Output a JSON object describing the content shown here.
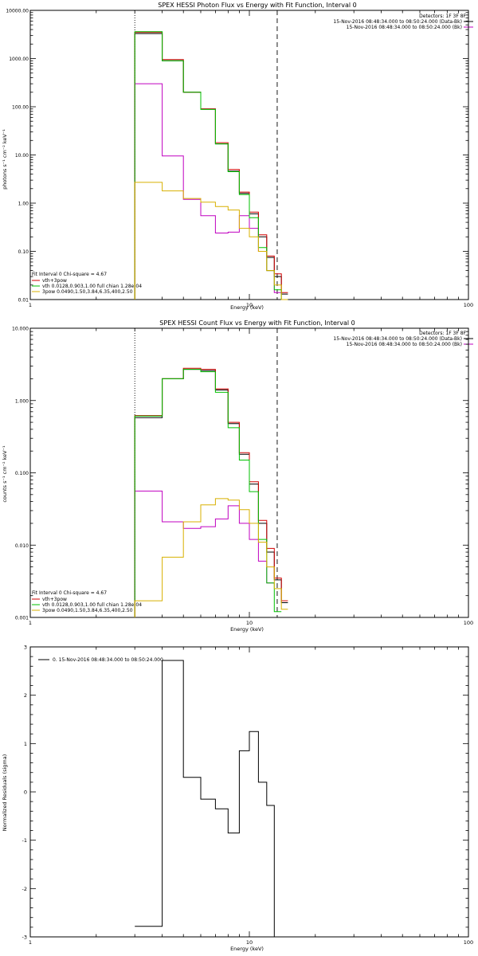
{
  "panel1": {
    "title": "SPEX HESSI Photon Flux vs Energy with Fit Function, Interval 0",
    "ylabel": "photons s⁻¹ cm⁻² keV⁻¹",
    "xlabel": "Energy (keV)",
    "detectors": "Detectors: 1F 3F 8F",
    "legend_top": [
      {
        "text": "15-Nov-2016 08:48:34.000 to 08:50:24.000 (Data-Bk)",
        "color": "#000000"
      },
      {
        "text": "15-Nov-2016 08:48:34.000 to 08:50:24.000 (Bk)",
        "color": "#c000c0"
      }
    ],
    "fit_header": "Fit Interval 0   Chi-square = 4.67",
    "fit_lines": [
      {
        "text": "vth+3pow",
        "color": "#d00000"
      },
      {
        "text": "vth 0.0128,0.903,1.00  full chian 1.28e-04",
        "color": "#00c000"
      },
      {
        "text": "3pow 0.0490,1.50,3.84,6.35,400,2.50",
        "color": "#d8b000"
      }
    ]
  },
  "panel2": {
    "title": "SPEX HESSI Count Flux vs Energy with Fit Function, Interval 0",
    "ylabel": "counts s⁻¹ cm⁻² keV⁻¹",
    "xlabel": "Energy (keV)",
    "detectors": "Detectors: 1F 3F 8F",
    "legend_top": [
      {
        "text": "15-Nov-2016 08:48:34.000 to 08:50:24.000 (Data-Bk)",
        "color": "#000000"
      },
      {
        "text": "15-Nov-2016 08:48:34.000 to 08:50:24.000 (Bk)",
        "color": "#c000c0"
      }
    ],
    "fit_header": "Fit Interval 0   Chi-square = 4.67",
    "fit_lines": [
      {
        "text": "vth+3pow",
        "color": "#d00000"
      },
      {
        "text": "vth 0.0128,0.903,1.00  full chian 1.28e-04",
        "color": "#00c000"
      },
      {
        "text": "3pow 0.0490,1.50,3.84,6.35,400,2.50",
        "color": "#d8b000"
      }
    ]
  },
  "panel3": {
    "ylabel": "Normalized Residuals (sigma)",
    "xlabel": "Energy (keV)",
    "legend": "0. 15-Nov-2016 08:48:34.000 to 08:50:24.000"
  },
  "chart_data": [
    {
      "type": "line",
      "title": "SPEX HESSI Photon Flux vs Energy with Fit Function, Interval 0",
      "xlabel": "Energy (keV)",
      "ylabel": "photons s⁻¹ cm⁻² keV⁻¹",
      "xscale": "log",
      "yscale": "log",
      "xlim": [
        1,
        100
      ],
      "ylim": [
        0.01,
        10000
      ],
      "xticks": [
        "1",
        "10",
        "100"
      ],
      "yticks": [
        "0.01",
        "0.10",
        "1.00",
        "10.00",
        "100.00",
        "1000.00",
        "10000.00"
      ],
      "bin_edges": [
        3,
        4,
        5,
        6,
        7,
        8,
        9,
        10,
        11,
        12,
        13,
        14,
        15,
        16,
        17
      ],
      "series": [
        {
          "name": "15-Nov-2016 08:48:34.000 to 08:50:24.000 (Data-Bk)",
          "color": "#000000",
          "values": [
            3300,
            900,
            200,
            90,
            17,
            4.6,
            1.6,
            0.6,
            0.2,
            0.075,
            0.03,
            0.013,
            null,
            null
          ]
        },
        {
          "name": "15-Nov-2016 08:48:34.000 to 08:50:24.000 (Bk)",
          "color": "#c000c0",
          "values": [
            300,
            9.5,
            1.2,
            0.55,
            0.24,
            0.25,
            0.55,
            0.3,
            0.1,
            0.04,
            0.014,
            null,
            null,
            null
          ]
        },
        {
          "name": "vth+3pow",
          "color": "#d00000",
          "values": [
            3500,
            950,
            200,
            90,
            18,
            5,
            1.7,
            0.65,
            0.22,
            0.08,
            0.034,
            0.014,
            null,
            null
          ]
        },
        {
          "name": "vth",
          "color": "#00c000",
          "values": [
            3600,
            900,
            200,
            88,
            17,
            4.5,
            1.5,
            0.5,
            0.12,
            0.04,
            0.016,
            0.007,
            null,
            null
          ]
        },
        {
          "name": "3pow",
          "color": "#d8b000",
          "values": [
            2.7,
            1.8,
            1.25,
            1.05,
            0.85,
            0.72,
            0.3,
            0.2,
            0.1,
            0.04,
            0.02,
            0.01,
            null,
            null
          ]
        }
      ],
      "vlines": [
        {
          "x": 3,
          "style": "dotted"
        },
        {
          "x": 13.4,
          "style": "dashed"
        }
      ]
    },
    {
      "type": "line",
      "title": "SPEX HESSI Count Flux vs Energy with Fit Function, Interval 0",
      "xlabel": "Energy (keV)",
      "ylabel": "counts s⁻¹ cm⁻² keV⁻¹",
      "xscale": "log",
      "yscale": "log",
      "xlim": [
        1,
        100
      ],
      "ylim": [
        0.001,
        10
      ],
      "xticks": [
        "1",
        "10",
        "100"
      ],
      "yticks": [
        "0.001",
        "0.010",
        "0.100",
        "1.000",
        "10.000"
      ],
      "bin_edges": [
        3,
        4,
        5,
        6,
        7,
        8,
        9,
        10,
        11,
        12,
        13,
        14,
        15,
        16,
        17
      ],
      "series": [
        {
          "name": "15-Nov-2016 08:48:34.000 to 08:50:24.000 (Data-Bk)",
          "color": "#000000",
          "values": [
            0.58,
            2.0,
            2.7,
            2.6,
            1.4,
            0.48,
            0.18,
            0.07,
            0.02,
            0.008,
            0.0033,
            0.0016,
            null,
            null
          ]
        },
        {
          "name": "15-Nov-2016 08:48:34.000 to 08:50:24.000 (Bk)",
          "color": "#c000c0",
          "values": [
            0.056,
            0.021,
            0.017,
            0.018,
            0.023,
            0.035,
            0.02,
            0.012,
            0.006,
            0.003,
            null,
            null,
            null,
            null
          ]
        },
        {
          "name": "vth+3pow",
          "color": "#d00000",
          "values": [
            0.62,
            2.0,
            2.8,
            2.7,
            1.45,
            0.5,
            0.19,
            0.075,
            0.022,
            0.009,
            0.0035,
            0.0017,
            null,
            null
          ]
        },
        {
          "name": "vth",
          "color": "#00c000",
          "values": [
            0.61,
            2.0,
            2.7,
            2.5,
            1.3,
            0.42,
            0.15,
            0.055,
            0.012,
            0.003,
            0.0012,
            null,
            null,
            null
          ]
        },
        {
          "name": "3pow",
          "color": "#d8b000",
          "values": [
            0.0017,
            0.0068,
            0.021,
            0.036,
            0.044,
            0.042,
            0.031,
            0.02,
            0.011,
            0.005,
            0.0025,
            0.0013,
            null,
            null
          ]
        }
      ],
      "vlines": [
        {
          "x": 3,
          "style": "dotted"
        },
        {
          "x": 13.4,
          "style": "dashed"
        }
      ]
    },
    {
      "type": "line",
      "title": "",
      "xlabel": "Energy (keV)",
      "ylabel": "Normalized Residuals (sigma)",
      "xscale": "log",
      "yscale": "linear",
      "xlim": [
        1,
        100
      ],
      "ylim": [
        -3,
        3
      ],
      "xticks": [
        "1",
        "10",
        "100"
      ],
      "yticks": [
        "-3",
        "-2",
        "-1",
        "0",
        "1",
        "2",
        "3"
      ],
      "bin_edges": [
        3,
        4,
        5,
        6,
        7,
        8,
        9,
        10,
        11,
        12,
        13
      ],
      "series": [
        {
          "name": "0. 15-Nov-2016 08:48:34.000 to 08:50:24.000",
          "color": "#000000",
          "values": [
            -2.78,
            2.72,
            0.3,
            -0.15,
            -0.35,
            -0.85,
            0.85,
            1.25,
            0.2,
            -0.28
          ]
        }
      ]
    }
  ]
}
